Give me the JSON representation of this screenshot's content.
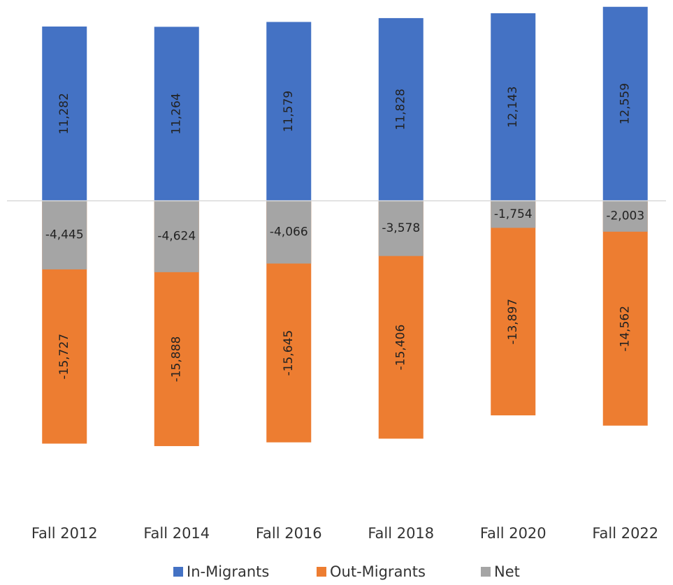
{
  "chart_data": {
    "type": "bar",
    "categories": [
      "Fall 2012",
      "Fall 2014",
      "Fall 2016",
      "Fall 2018",
      "Fall 2020",
      "Fall 2022"
    ],
    "series": [
      {
        "name": "In-Migrants",
        "color": "#4472c4",
        "values": [
          11282,
          11264,
          11579,
          11828,
          12143,
          12559
        ],
        "value_labels": [
          "11,282",
          "11,264",
          "11,579",
          "11,828",
          "12,143",
          "12,559"
        ]
      },
      {
        "name": "Out-Migrants",
        "color": "#ed7d31",
        "values": [
          -15727,
          -15888,
          -15645,
          -15406,
          -13897,
          -14562
        ],
        "value_labels": [
          "-15,727",
          "-15,888",
          "-15,645",
          "-15,406",
          "-13,897",
          "-14,562"
        ]
      },
      {
        "name": "Net",
        "color": "#a5a5a5",
        "values": [
          -4445,
          -4624,
          -4066,
          -3578,
          -1754,
          -2003
        ],
        "value_labels": [
          "-4,445",
          "-4,624",
          "-4,066",
          "-3,578",
          "-1,754",
          "-2,003"
        ]
      }
    ],
    "ylim": [
      -20000,
      13000
    ]
  }
}
